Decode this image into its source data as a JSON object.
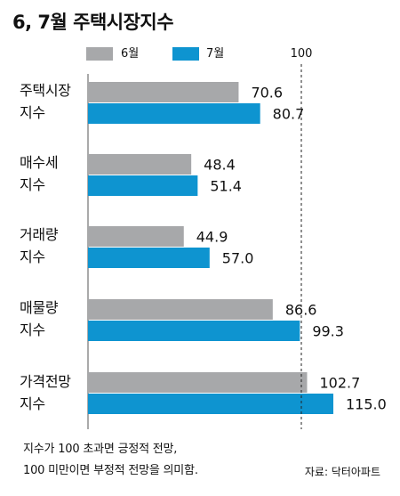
{
  "colors": {
    "june": "#a7a8aa",
    "july": "#0e94d0",
    "axis": "#555555",
    "text": "#111111"
  },
  "chart_data": {
    "type": "bar",
    "orientation": "horizontal",
    "title": "6, 7월 주택시장지수",
    "categories": [
      [
        "주택시장",
        "지수"
      ],
      [
        "매수세",
        "지수"
      ],
      [
        "거래량",
        "지수"
      ],
      [
        "매물량",
        "지수"
      ],
      [
        "가격전망",
        "지수"
      ]
    ],
    "series": [
      {
        "name": "6월",
        "color": "#a7a8aa",
        "values": [
          70.6,
          48.4,
          44.9,
          86.6,
          102.7
        ],
        "labels": [
          "70.6",
          "48.4",
          "44.9",
          "86.6",
          "102.7"
        ]
      },
      {
        "name": "7월",
        "color": "#0e94d0",
        "values": [
          80.7,
          51.4,
          57.0,
          99.3,
          115.0
        ],
        "labels": [
          "80.7",
          "51.4",
          "57.0",
          "99.3",
          "115.0"
        ]
      }
    ],
    "reference_line": {
      "value": 100,
      "label": "100",
      "style": "dashed"
    },
    "legend": "top",
    "grid": false,
    "xlim": [
      0,
      125
    ]
  },
  "footnote": {
    "line1": "지수가 100 초과면 긍정적 전망,",
    "line2": "100 미만이면 부정적 전망을 의미함."
  },
  "source": "자료: 닥터아파트"
}
